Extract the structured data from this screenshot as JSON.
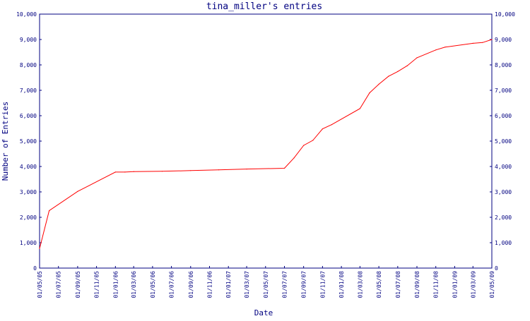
{
  "chart_data": {
    "type": "line",
    "title": "tina_miller's entries",
    "xlabel": "Date",
    "ylabel": "Number of Entries",
    "ylim": [
      0,
      10000
    ],
    "y_ticks": [
      {
        "value": 0,
        "label": "0"
      },
      {
        "value": 1000,
        "label": "1,000"
      },
      {
        "value": 2000,
        "label": "2,000"
      },
      {
        "value": 3000,
        "label": "3,000"
      },
      {
        "value": 4000,
        "label": "4,000"
      },
      {
        "value": 5000,
        "label": "5,000"
      },
      {
        "value": 6000,
        "label": "6,000"
      },
      {
        "value": 7000,
        "label": "7,000"
      },
      {
        "value": 8000,
        "label": "8,000"
      },
      {
        "value": 9000,
        "label": "9,000"
      },
      {
        "value": 10000,
        "label": "10,000"
      }
    ],
    "x_ticks": [
      "01/05/05",
      "01/07/05",
      "01/09/05",
      "01/11/05",
      "01/01/06",
      "01/03/06",
      "01/05/06",
      "01/07/06",
      "01/09/06",
      "01/11/06",
      "01/01/07",
      "01/03/07",
      "01/05/07",
      "01/07/07",
      "01/09/07",
      "01/11/07",
      "01/01/08",
      "01/03/08",
      "01/05/08",
      "01/07/08",
      "01/09/08",
      "01/11/08",
      "01/01/09",
      "01/03/09",
      "01/05/09"
    ],
    "series_color": "#ff0000",
    "axis_color": "#000080",
    "grid": false,
    "x": [
      "01/05/05",
      "01/06/05",
      "01/09/05",
      "01/01/06",
      "01/02/06",
      "01/03/06",
      "01/06/06",
      "01/09/06",
      "01/12/06",
      "01/03/07",
      "01/07/07",
      "01/08/07",
      "01/09/07",
      "01/10/07",
      "01/11/07",
      "01/12/07",
      "01/03/08",
      "01/04/08",
      "01/05/08",
      "01/06/08",
      "01/07/08",
      "01/08/08",
      "01/09/08",
      "01/11/08",
      "01/12/08",
      "01/03/09",
      "01/04/09",
      "01/05/09"
    ],
    "values": [
      770,
      2260,
      3020,
      3780,
      3780,
      3800,
      3810,
      3840,
      3870,
      3900,
      3930,
      4340,
      4830,
      5030,
      5480,
      5650,
      6280,
      6900,
      7240,
      7550,
      7740,
      7970,
      8280,
      8590,
      8700,
      8850,
      8880,
      9000
    ]
  }
}
